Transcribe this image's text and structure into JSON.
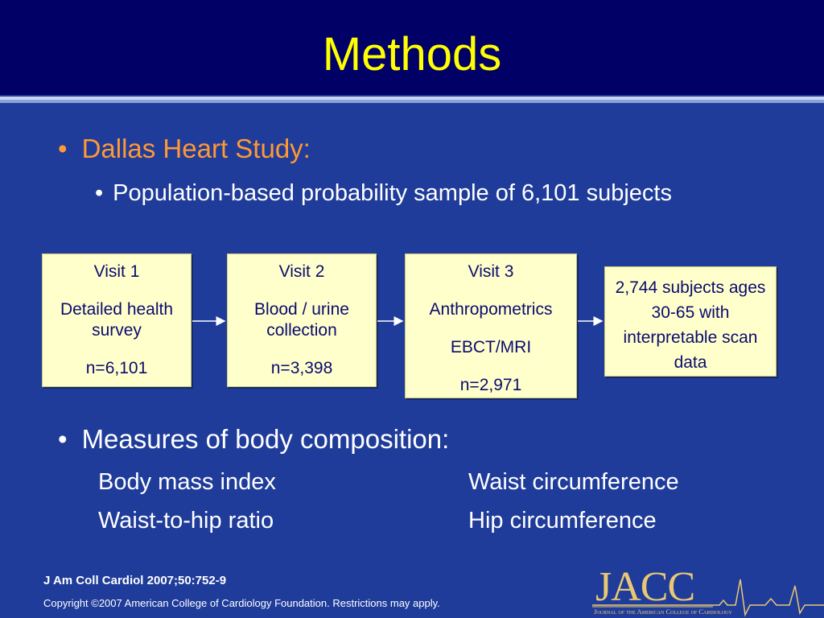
{
  "slide": {
    "title": "Methods",
    "bullet_marker": "•",
    "study_heading": "Dallas Heart Study:",
    "study_detail": "Population-based probability sample of 6,101 subjects",
    "measures_heading": "Measures of body composition:",
    "measures": {
      "col1": [
        "Body mass index",
        "Waist-to-hip ratio"
      ],
      "col2": [
        "Waist circumference",
        "Hip circumference"
      ]
    }
  },
  "flow": {
    "visit1": {
      "title": "Visit 1",
      "desc": "Detailed health survey",
      "n": "n=6,101"
    },
    "visit2": {
      "title": "Visit 2",
      "desc": "Blood / urine collection",
      "n": "n=3,398"
    },
    "visit3": {
      "title": "Visit 3",
      "desc1": "Anthropometrics",
      "desc2": "EBCT/MRI",
      "n": "n=2,971"
    },
    "result": {
      "text": "2,744 subjects ages 30-65 with interpretable scan data"
    }
  },
  "footer": {
    "citation": "J Am Coll Cardiol 2007;50:752-9",
    "copyright": "Copyright ©2007 American College of Cardiology Foundation. Restrictions may apply.",
    "logo_text": "JACC",
    "logo_subtitle": "Journal of the American College of Cardiology"
  },
  "colors": {
    "background": "#1f3c9a",
    "title_bar": "#000066",
    "title_text": "#ffff00",
    "heading_orange": "#ff9933",
    "box_fill": "#ffffcc",
    "box_text": "#0b0b6e",
    "logo_gold": "#e9c873"
  }
}
